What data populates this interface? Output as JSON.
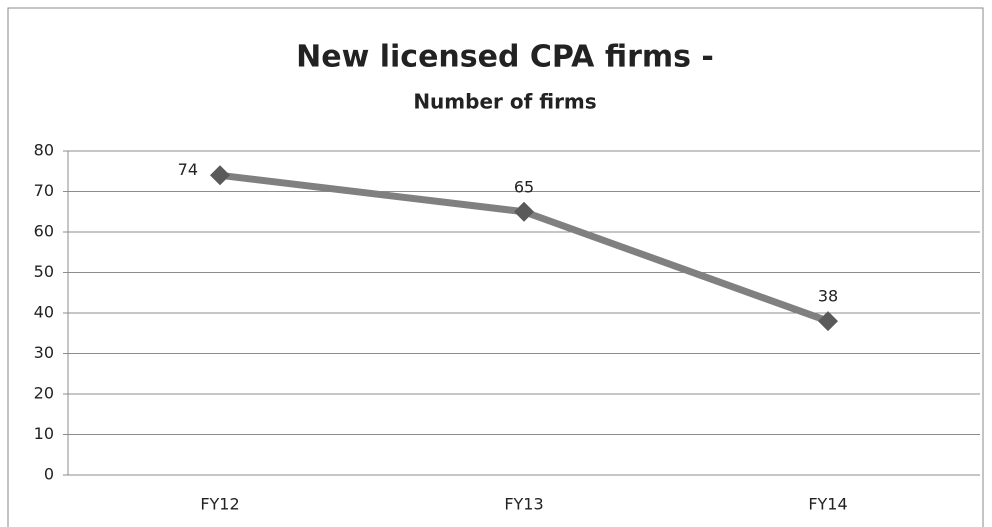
{
  "chart_data": {
    "type": "line",
    "title": "New licensed CPA firms -",
    "subtitle": "Number of firms",
    "categories": [
      "FY12",
      "FY13",
      "FY14"
    ],
    "series": [
      {
        "name": "Number of firms",
        "color": "#808080",
        "marker_color": "#5a5a5a",
        "values": [
          74,
          65,
          38
        ]
      }
    ],
    "ylim": [
      0,
      80
    ],
    "yticks": [
      0,
      10,
      20,
      30,
      40,
      50,
      60,
      70,
      80
    ],
    "grid": true,
    "legend": false
  }
}
